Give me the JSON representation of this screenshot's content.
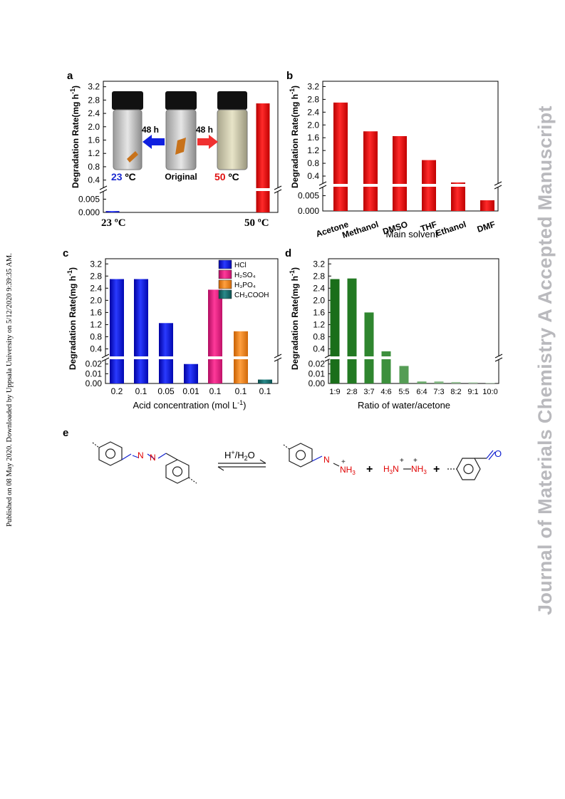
{
  "published_line": "Published on 08 May 2020. Downloaded by Uppsala University on 5/12/2020 9:39:35 AM.",
  "watermark": "Journal of Materials Chemistry A Accepted Manuscript",
  "colors": {
    "blue": "#0a10d0",
    "red": "#e00000",
    "pink": "#e0157a",
    "orange": "#f08010",
    "teal": "#106060",
    "green_dark": "#1e7a1e"
  },
  "panels": {
    "a": {
      "label": "a",
      "ylabel": "Degradation Rate(mg h",
      "ylabel_sup": "-1",
      "ylabel_close": ")",
      "upper_ticks": [
        "3.2",
        "2.8",
        "2.4",
        "2.0",
        "1.6",
        "1.2",
        "0.8",
        "0.4"
      ],
      "lower_ticks": [
        "0.005",
        "0.000"
      ],
      "photo": {
        "time_left": "48 h",
        "time_right": "48 h",
        "temp_left_num": "23",
        "temp_left_unit": " ºC",
        "center_label": "Original",
        "temp_right_num": "50",
        "temp_right_unit": " ºC",
        "icons": [
          "vial-cold",
          "vial-original",
          "vial-hot",
          "arrow-left",
          "arrow-right"
        ]
      }
    },
    "b": {
      "label": "b",
      "ylabel": "Degradation Rate(mg h",
      "ylabel_sup": "-1",
      "ylabel_close": ")",
      "xlabel": "Main solvent",
      "upper_ticks": [
        "3.2",
        "2.8",
        "2.4",
        "2.0",
        "1.6",
        "1.2",
        "0.8",
        "0.4"
      ],
      "lower_ticks": [
        "0.005",
        "0.000"
      ]
    },
    "c": {
      "label": "c",
      "ylabel": "Degradation Rate(mg h",
      "ylabel_sup": "-1",
      "ylabel_close": ")",
      "xlabel": "Acid concentration (mol L",
      "xlabel_sup": "-1",
      "xlabel_close": ")",
      "upper_ticks": [
        "3.2",
        "2.8",
        "2.4",
        "2.0",
        "1.6",
        "1.2",
        "0.8",
        "0.4"
      ],
      "lower_ticks": [
        "0.02",
        "0.01",
        "0.00"
      ],
      "legend": [
        "HCl",
        "H₂SO₄",
        "H₃PO₄",
        "CH₃COOH"
      ]
    },
    "d": {
      "label": "d",
      "ylabel": "Degradation Rate(mg h",
      "ylabel_sup": "-1",
      "ylabel_close": ")",
      "xlabel": "Ratio of water/acetone",
      "upper_ticks": [
        "3.2",
        "2.8",
        "2.4",
        "2.0",
        "1.6",
        "1.2",
        "0.8",
        "0.4"
      ],
      "lower_ticks": [
        "0.02",
        "0.01",
        "0.00"
      ]
    },
    "e": {
      "label": "e",
      "condition_main": "H",
      "condition_sup": "+",
      "condition_tail": "/H",
      "condition_sub": "2",
      "condition_end": "O",
      "plus": "+",
      "n": "N",
      "h3": "H",
      "three": "3",
      "h3n": "H",
      "plus_charge": "+"
    }
  },
  "chart_data": [
    {
      "panel": "a",
      "type": "bar",
      "categories": [
        "23 ºC",
        "50 ºC"
      ],
      "values": [
        0.0005,
        2.7
      ],
      "ylabel": "Degradation Rate(mg h-1)",
      "axis_break": {
        "lower_range": [
          0,
          0.007
        ],
        "upper_range": [
          0.2,
          3.3
        ]
      },
      "colors": [
        "#0a10d0",
        "#e00000"
      ]
    },
    {
      "panel": "b",
      "type": "bar",
      "categories": [
        "Acetone",
        "Methanol",
        "DMSO",
        "THF",
        "Ethanol",
        "DMF"
      ],
      "values": [
        2.7,
        1.8,
        1.65,
        0.9,
        0.2,
        0.0035
      ],
      "xlabel": "Main solvent",
      "ylabel": "Degradation Rate(mg h-1)",
      "axis_break": {
        "lower_range": [
          0,
          0.007
        ],
        "upper_range": [
          0.2,
          3.3
        ]
      },
      "color": "#e00000"
    },
    {
      "panel": "c",
      "type": "bar",
      "categories": [
        "0.2",
        "0.1",
        "0.05",
        "0.01",
        "0.1",
        "0.1",
        "0.1"
      ],
      "values": [
        2.7,
        2.7,
        1.25,
        0.02,
        2.35,
        0.98,
        0.004
      ],
      "series_of_bar": [
        "HCl",
        "HCl",
        "HCl",
        "HCl",
        "H₂SO₄",
        "H₃PO₄",
        "CH₃COOH"
      ],
      "xlabel": "Acid concentration (mol L-1)",
      "ylabel": "Degradation Rate(mg h-1)",
      "axis_break": {
        "lower_range": [
          0,
          0.022
        ],
        "upper_range": [
          0.2,
          3.3
        ]
      },
      "legend": [
        "HCl",
        "H₂SO₄",
        "H₃PO₄",
        "CH₃COOH"
      ],
      "colors": {
        "HCl": "#0a10d0",
        "H₂SO₄": "#e0157a",
        "H₃PO₄": "#f08010",
        "CH₃COOH": "#106060"
      }
    },
    {
      "panel": "d",
      "type": "bar",
      "categories": [
        "1:9",
        "2:8",
        "3:7",
        "4:6",
        "5:5",
        "6:4",
        "7:3",
        "8:2",
        "9:1",
        "10:0"
      ],
      "values": [
        2.7,
        2.72,
        1.6,
        0.32,
        0.018,
        0.002,
        0.002,
        0.0015,
        0.0012,
        0.0008
      ],
      "xlabel": "Ratio of water/acetone",
      "ylabel": "Degradation Rate(mg h-1)",
      "axis_break": {
        "lower_range": [
          0,
          0.022
        ],
        "upper_range": [
          0.2,
          3.3
        ]
      },
      "colors": [
        "#1a6e1a",
        "#237a23",
        "#2f862f",
        "#3d903d",
        "#559d55",
        "#6aa96a",
        "#80b580",
        "#97c197",
        "#adcdad",
        "#c2d9c2"
      ]
    }
  ]
}
